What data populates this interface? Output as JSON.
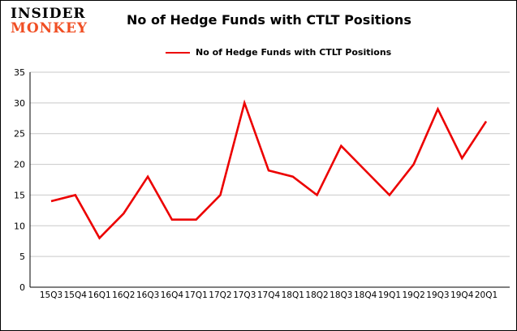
{
  "logo": {
    "line1": "INSIDER",
    "line2": "MONKEY",
    "line2_color": "#f04e23"
  },
  "header": {
    "title": "No of Hedge Funds with CTLT Positions"
  },
  "legend": {
    "label": "No of Hedge Funds with CTLT Positions",
    "line_color": "#ec0000"
  },
  "chart_data": {
    "type": "line",
    "title": "No of Hedge Funds with CTLT Positions",
    "categories": [
      "15Q3",
      "15Q4",
      "16Q1",
      "16Q2",
      "16Q3",
      "16Q4",
      "17Q1",
      "17Q2",
      "17Q3",
      "17Q4",
      "18Q1",
      "18Q2",
      "18Q3",
      "18Q4",
      "19Q1",
      "19Q2",
      "19Q3",
      "19Q4",
      "20Q1"
    ],
    "values": [
      14,
      15,
      8,
      12,
      18,
      11,
      11,
      15,
      30,
      19,
      18,
      15,
      23,
      19,
      15,
      20,
      29,
      21,
      27
    ],
    "xlabel": "",
    "ylabel": "",
    "ylim": [
      0,
      35
    ],
    "yticks": [
      0,
      5,
      10,
      15,
      20,
      25,
      30,
      35
    ],
    "grid": true,
    "grid_color": "#c9c9c9",
    "line_color": "#ec0000",
    "legend_position": "top"
  }
}
